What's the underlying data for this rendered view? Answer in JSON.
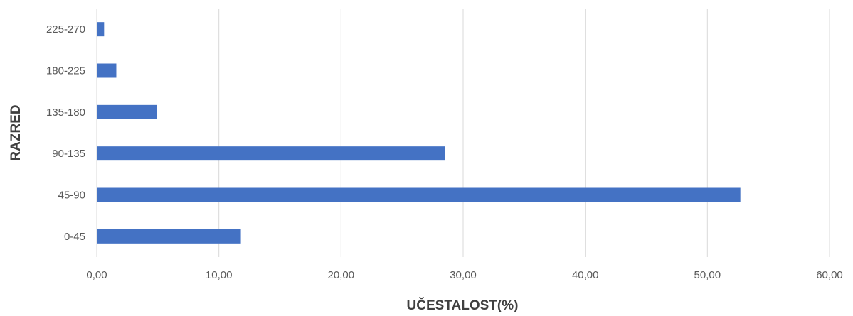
{
  "chart_data": {
    "type": "bar",
    "orientation": "horizontal",
    "categories": [
      "0-45",
      "45-90",
      "90-135",
      "135-180",
      "180-225",
      "225-270"
    ],
    "values": [
      11.8,
      52.7,
      28.5,
      4.9,
      1.6,
      0.6
    ],
    "xlabel": "UČESTALOST(%)",
    "ylabel": "RAZRED",
    "xlim": [
      0,
      60
    ],
    "xticks": [
      "0,00",
      "10,00",
      "20,00",
      "30,00",
      "40,00",
      "50,00",
      "60,00"
    ],
    "grid": true,
    "bar_color": "#4472C4"
  }
}
